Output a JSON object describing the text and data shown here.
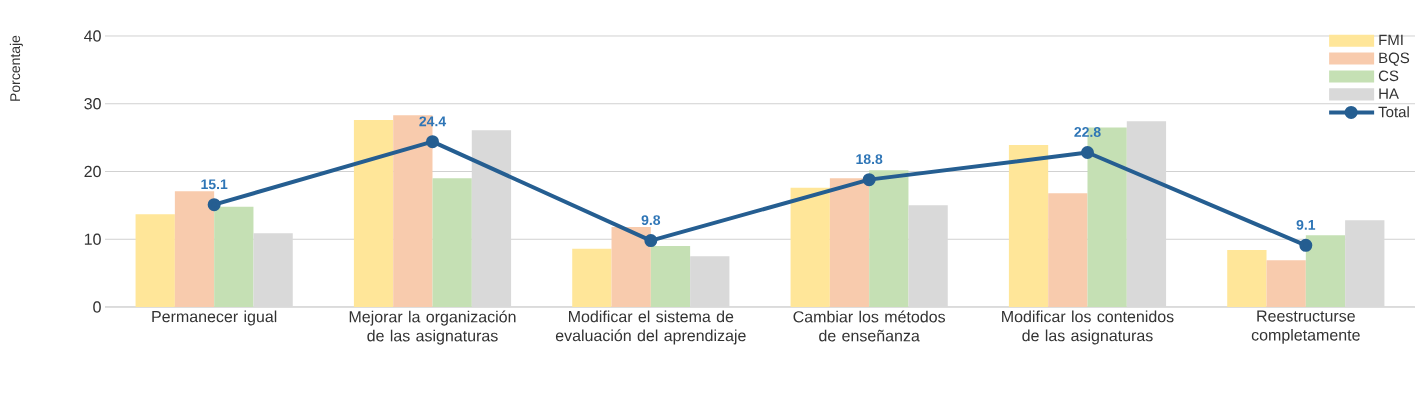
{
  "chart_data": {
    "type": "bar",
    "ylabel": "Porcentaje",
    "categories": [
      "Permanecer igual",
      "Mejorar la organización de las asignaturas",
      "Modificar el sistema de evaluación del aprendizaje",
      "Cambiar los métodos de enseñanza",
      "Modificar los contenidos de las asignaturas",
      "Reestructurse completamente"
    ],
    "series": [
      {
        "name": "FMI",
        "color": "#ffe699",
        "values": [
          13.7,
          27.6,
          8.6,
          17.6,
          23.9,
          8.4
        ]
      },
      {
        "name": "BQS",
        "color": "#f8cbad",
        "values": [
          17.1,
          28.3,
          11.8,
          19.0,
          16.8,
          6.9
        ]
      },
      {
        "name": "CS",
        "color": "#c5e0b4",
        "values": [
          14.8,
          19.0,
          9.0,
          20.2,
          26.5,
          10.6
        ]
      },
      {
        "name": "HA",
        "color": "#d9d9d9",
        "values": [
          10.9,
          26.1,
          7.5,
          15.0,
          27.4,
          12.8
        ]
      },
      {
        "name": "Total",
        "type": "line",
        "color": "#255e91",
        "marker": "circle",
        "values": [
          15.1,
          24.4,
          9.8,
          18.8,
          22.8,
          9.1
        ],
        "value_labels": [
          "15.1",
          "24.4",
          "9.8",
          "18.8",
          "22.8",
          "9.1"
        ]
      }
    ],
    "ylim": [
      0,
      40
    ],
    "yticks": [
      0,
      10,
      20,
      30,
      40
    ],
    "grid": "y",
    "legend": "top right"
  }
}
